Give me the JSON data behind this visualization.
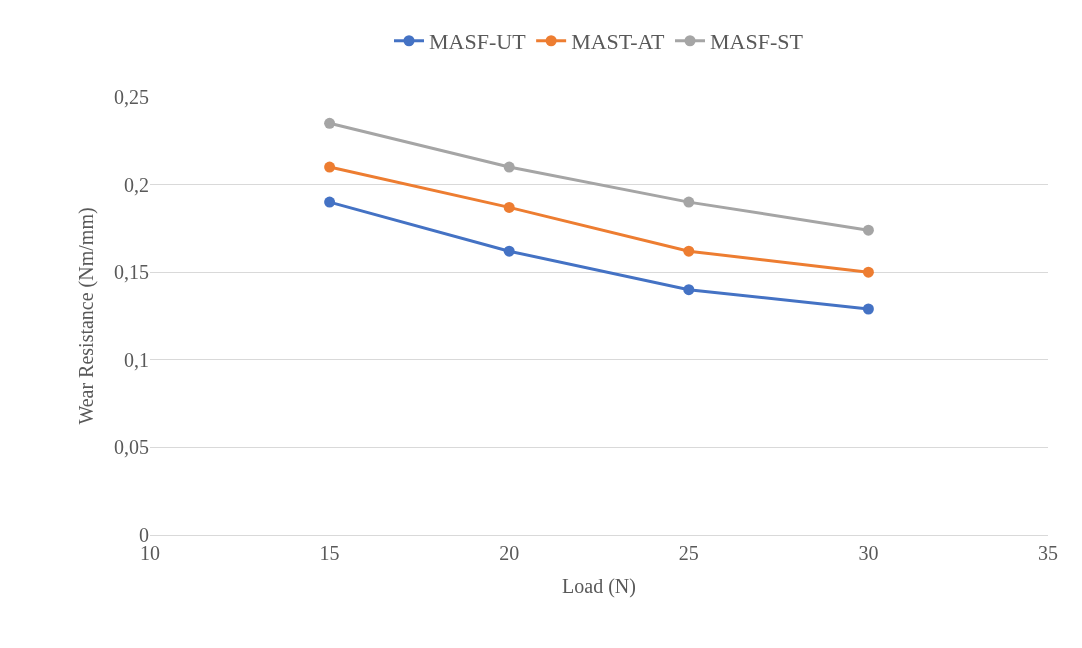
{
  "chart_data": {
    "type": "line",
    "xlabel": "Load (N)",
    "ylabel": "Wear Resistance (Nm/mm)",
    "x": [
      15,
      20,
      25,
      30
    ],
    "series": [
      {
        "name": "MASF-UT",
        "color": "#4472c4",
        "values": [
          0.19,
          0.162,
          0.14,
          0.129
        ]
      },
      {
        "name": "MAST-AT",
        "color": "#ed7d31",
        "values": [
          0.21,
          0.187,
          0.162,
          0.15
        ]
      },
      {
        "name": "MASF-ST",
        "color": "#a5a5a5",
        "values": [
          0.235,
          0.21,
          0.19,
          0.174
        ]
      }
    ],
    "xlim": [
      10,
      35
    ],
    "xticks": [
      10,
      15,
      20,
      25,
      30,
      35
    ],
    "ylim": [
      0,
      0.25
    ],
    "yticks": [
      {
        "value": 0,
        "label": "0"
      },
      {
        "value": 0.05,
        "label": "0,05"
      },
      {
        "value": 0.1,
        "label": "0,1"
      },
      {
        "value": 0.15,
        "label": "0,15"
      },
      {
        "value": 0.2,
        "label": "0,2"
      },
      {
        "value": 0.25,
        "label": "0,25"
      }
    ],
    "grid": "y",
    "legend": "top",
    "marker": "circle",
    "line_style": "solid"
  }
}
